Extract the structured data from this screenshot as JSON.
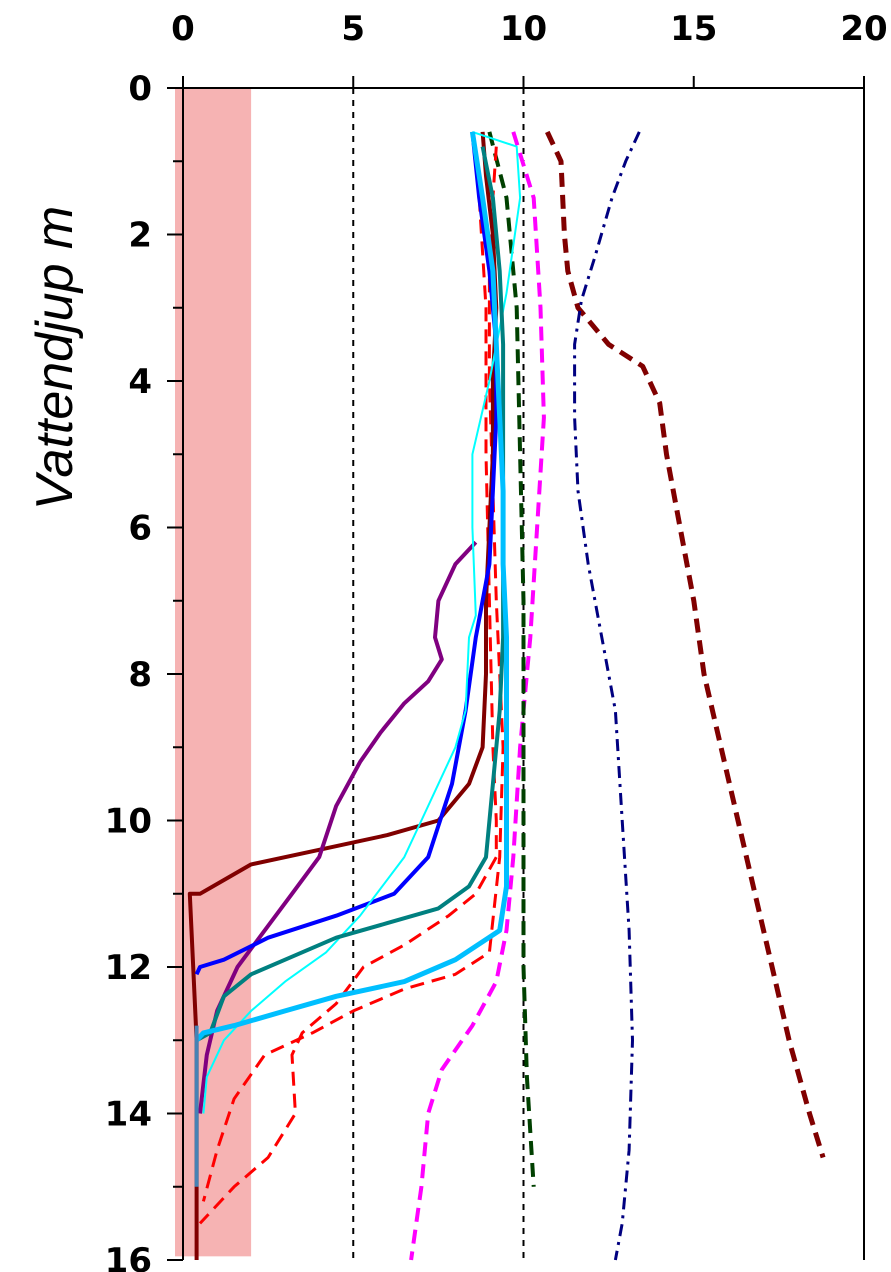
{
  "chart_data": {
    "type": "line",
    "title": "",
    "ylabel": "Vattendjup m",
    "xlabel": "",
    "x_axis_position": "top",
    "y_axis_inverted": true,
    "xlim": [
      0,
      20
    ],
    "ylim": [
      0,
      16
    ],
    "x_ticks": [
      0,
      5,
      10,
      15,
      20
    ],
    "x_tick_labels": [
      "0",
      "5",
      "10",
      "15",
      "20"
    ],
    "y_ticks": [
      0,
      2,
      4,
      6,
      8,
      10,
      12,
      14,
      16
    ],
    "y_tick_labels": [
      "0",
      "2",
      "4",
      "6",
      "8",
      "10",
      "12",
      "14",
      "16"
    ],
    "grid": false,
    "reference_lines_x": [
      5,
      10
    ],
    "shaded_band_x": [
      0,
      2
    ],
    "colors": {
      "band": "#f4a6a6",
      "axis": "#000000"
    },
    "series": [
      {
        "color": "#800000",
        "style": "dashed",
        "width": 5,
        "points": [
          [
            10.7,
            0.6
          ],
          [
            11.1,
            1.0
          ],
          [
            11.2,
            2.0
          ],
          [
            11.3,
            2.5
          ],
          [
            11.6,
            3.0
          ],
          [
            12.5,
            3.5
          ],
          [
            13.5,
            3.8
          ],
          [
            14.0,
            4.3
          ],
          [
            14.2,
            5.0
          ],
          [
            14.6,
            6.0
          ],
          [
            15.0,
            7.0
          ],
          [
            15.3,
            8.0
          ],
          [
            15.8,
            9.0
          ],
          [
            16.3,
            10.0
          ],
          [
            16.8,
            11.0
          ],
          [
            17.3,
            12.0
          ],
          [
            17.8,
            13.0
          ],
          [
            18.4,
            14.0
          ],
          [
            18.8,
            14.6
          ]
        ]
      },
      {
        "color": "#000080",
        "style": "dashdot",
        "width": 3,
        "points": [
          [
            13.4,
            0.6
          ],
          [
            13.0,
            1.0
          ],
          [
            12.6,
            1.5
          ],
          [
            12.1,
            2.3
          ],
          [
            11.7,
            2.9
          ],
          [
            11.5,
            3.5
          ],
          [
            11.5,
            4.5
          ],
          [
            11.6,
            5.5
          ],
          [
            11.9,
            6.5
          ],
          [
            12.3,
            7.5
          ],
          [
            12.7,
            8.5
          ],
          [
            12.9,
            10.0
          ],
          [
            13.1,
            11.5
          ],
          [
            13.2,
            13.0
          ],
          [
            13.1,
            14.5
          ],
          [
            12.9,
            15.5
          ],
          [
            12.7,
            16.0
          ]
        ]
      },
      {
        "color": "#ff00ff",
        "style": "dashed",
        "width": 4,
        "points": [
          [
            9.7,
            0.6
          ],
          [
            10.3,
            1.5
          ],
          [
            10.5,
            3.0
          ],
          [
            10.6,
            4.5
          ],
          [
            10.4,
            6.0
          ],
          [
            10.2,
            7.5
          ],
          [
            9.9,
            9.0
          ],
          [
            9.7,
            10.5
          ],
          [
            9.5,
            11.5
          ],
          [
            9.2,
            12.2
          ],
          [
            8.5,
            12.8
          ],
          [
            7.6,
            13.4
          ],
          [
            7.2,
            14.0
          ],
          [
            7.0,
            15.0
          ],
          [
            6.7,
            16.0
          ]
        ]
      },
      {
        "color": "#004000",
        "style": "dashed",
        "width": 4,
        "points": [
          [
            9.0,
            0.6
          ],
          [
            9.5,
            1.5
          ],
          [
            9.8,
            3.0
          ],
          [
            9.9,
            5.0
          ],
          [
            10.0,
            7.0
          ],
          [
            10.0,
            9.0
          ],
          [
            10.0,
            10.5
          ],
          [
            10.0,
            12.0
          ],
          [
            10.1,
            13.5
          ],
          [
            10.3,
            15.0
          ]
        ]
      },
      {
        "color": "#ff0000",
        "style": "dashed",
        "width": 3,
        "points": [
          [
            8.5,
            0.6
          ],
          [
            8.7,
            1.5
          ],
          [
            8.9,
            3.0
          ],
          [
            8.9,
            5.0
          ],
          [
            9.0,
            7.0
          ],
          [
            9.1,
            9.0
          ],
          [
            9.2,
            10.0
          ],
          [
            9.2,
            10.5
          ],
          [
            8.6,
            11.0
          ],
          [
            7.8,
            11.3
          ],
          [
            6.5,
            11.7
          ],
          [
            5.3,
            12.0
          ],
          [
            4.5,
            12.5
          ],
          [
            3.5,
            12.9
          ],
          [
            3.2,
            13.2
          ],
          [
            3.3,
            14.0
          ],
          [
            2.5,
            14.6
          ],
          [
            1.5,
            15.0
          ],
          [
            0.5,
            15.5
          ]
        ]
      },
      {
        "color": "#ff0000",
        "style": "dashed",
        "width": 3,
        "points": [
          [
            9.2,
            0.8
          ],
          [
            9.1,
            1.5
          ],
          [
            9.0,
            2.5
          ],
          [
            9.0,
            4.0
          ],
          [
            9.1,
            5.5
          ],
          [
            9.2,
            7.0
          ],
          [
            9.4,
            9.0
          ],
          [
            9.3,
            10.5
          ],
          [
            9.0,
            11.8
          ],
          [
            8.0,
            12.1
          ],
          [
            6.5,
            12.3
          ],
          [
            5.0,
            12.6
          ],
          [
            3.8,
            12.9
          ],
          [
            2.4,
            13.2
          ],
          [
            1.5,
            13.8
          ],
          [
            1.0,
            14.5
          ],
          [
            0.6,
            15.2
          ]
        ]
      },
      {
        "color": "#800000",
        "style": "solid",
        "width": 4,
        "points": [
          [
            8.8,
            0.6
          ],
          [
            8.9,
            1.2
          ],
          [
            9.1,
            2.0
          ],
          [
            9.2,
            3.0
          ],
          [
            9.1,
            4.0
          ],
          [
            9.1,
            5.0
          ],
          [
            9.0,
            6.0
          ],
          [
            8.9,
            7.0
          ],
          [
            8.9,
            8.0
          ],
          [
            8.8,
            9.0
          ],
          [
            8.4,
            9.5
          ],
          [
            7.5,
            10.0
          ],
          [
            6.0,
            10.2
          ],
          [
            4.0,
            10.4
          ],
          [
            2.0,
            10.6
          ],
          [
            0.5,
            11.0
          ],
          [
            0.2,
            11.0
          ],
          [
            0.3,
            12.0
          ],
          [
            0.4,
            13.0
          ],
          [
            0.4,
            14.0
          ],
          [
            0.4,
            15.0
          ],
          [
            0.4,
            16.0
          ]
        ]
      },
      {
        "color": "#800080",
        "style": "solid",
        "width": 4,
        "points": [
          [
            8.6,
            6.2
          ],
          [
            8.0,
            6.5
          ],
          [
            7.5,
            7.0
          ],
          [
            7.4,
            7.5
          ],
          [
            7.6,
            7.8
          ],
          [
            7.2,
            8.1
          ],
          [
            6.5,
            8.4
          ],
          [
            5.8,
            8.8
          ],
          [
            5.2,
            9.2
          ],
          [
            4.5,
            9.8
          ],
          [
            4.0,
            10.5
          ],
          [
            3.2,
            11.0
          ],
          [
            2.4,
            11.5
          ],
          [
            1.6,
            12.0
          ],
          [
            1.0,
            12.6
          ],
          [
            0.7,
            13.2
          ],
          [
            0.5,
            14.0
          ]
        ]
      },
      {
        "color": "#0000ff",
        "style": "solid",
        "width": 4,
        "points": [
          [
            8.5,
            0.6
          ],
          [
            8.7,
            1.5
          ],
          [
            9.0,
            2.5
          ],
          [
            9.2,
            3.5
          ],
          [
            9.2,
            4.5
          ],
          [
            9.1,
            5.5
          ],
          [
            9.0,
            6.5
          ],
          [
            8.6,
            7.5
          ],
          [
            8.3,
            8.5
          ],
          [
            7.9,
            9.5
          ],
          [
            7.2,
            10.5
          ],
          [
            6.2,
            11.0
          ],
          [
            4.5,
            11.3
          ],
          [
            2.5,
            11.6
          ],
          [
            1.2,
            11.9
          ],
          [
            0.5,
            12.0
          ],
          [
            0.4,
            12.1
          ]
        ]
      },
      {
        "color": "#00ffff",
        "style": "solid",
        "width": 2,
        "points": [
          [
            8.5,
            0.6
          ],
          [
            9.8,
            0.8
          ],
          [
            9.9,
            1.5
          ],
          [
            9.5,
            2.8
          ],
          [
            9.0,
            4.0
          ],
          [
            8.5,
            5.0
          ],
          [
            8.5,
            6.0
          ],
          [
            8.6,
            7.2
          ],
          [
            8.4,
            7.5
          ],
          [
            8.3,
            8.5
          ],
          [
            8.0,
            9.0
          ],
          [
            7.5,
            9.5
          ],
          [
            7.0,
            10.0
          ],
          [
            6.5,
            10.5
          ],
          [
            5.2,
            11.3
          ],
          [
            4.2,
            11.8
          ],
          [
            3.0,
            12.2
          ],
          [
            2.0,
            12.6
          ],
          [
            1.2,
            13.0
          ],
          [
            0.7,
            13.5
          ],
          [
            0.6,
            14.0
          ]
        ]
      },
      {
        "color": "#008080",
        "style": "solid",
        "width": 4,
        "points": [
          [
            8.8,
            0.8
          ],
          [
            9.1,
            1.5
          ],
          [
            9.3,
            2.5
          ],
          [
            9.4,
            3.5
          ],
          [
            9.4,
            4.5
          ],
          [
            9.4,
            5.5
          ],
          [
            9.4,
            6.5
          ],
          [
            9.4,
            7.5
          ],
          [
            9.3,
            8.5
          ],
          [
            9.1,
            9.5
          ],
          [
            8.9,
            10.5
          ],
          [
            8.4,
            10.9
          ],
          [
            7.5,
            11.2
          ],
          [
            6.0,
            11.4
          ],
          [
            4.5,
            11.6
          ],
          [
            3.0,
            11.9
          ],
          [
            2.0,
            12.1
          ],
          [
            1.2,
            12.4
          ],
          [
            0.8,
            12.9
          ],
          [
            0.4,
            13.0
          ]
        ]
      },
      {
        "color": "#00bfff",
        "style": "solid",
        "width": 5,
        "points": [
          [
            8.5,
            0.6
          ],
          [
            8.8,
            1.5
          ],
          [
            9.1,
            2.5
          ],
          [
            9.2,
            3.5
          ],
          [
            9.3,
            4.5
          ],
          [
            9.4,
            5.5
          ],
          [
            9.4,
            6.5
          ],
          [
            9.5,
            7.5
          ],
          [
            9.5,
            8.5
          ],
          [
            9.5,
            9.5
          ],
          [
            9.5,
            10.5
          ],
          [
            9.5,
            10.9
          ],
          [
            9.3,
            11.5
          ],
          [
            8.0,
            11.9
          ],
          [
            6.5,
            12.2
          ],
          [
            4.5,
            12.4
          ],
          [
            3.0,
            12.6
          ],
          [
            1.5,
            12.8
          ],
          [
            0.6,
            12.9
          ],
          [
            0.4,
            13.0
          ]
        ]
      },
      {
        "color": "#4682b4",
        "style": "solid",
        "width": 4,
        "points": [
          [
            0.4,
            12.8
          ],
          [
            0.4,
            13.5
          ],
          [
            0.4,
            14.5
          ],
          [
            0.4,
            15.0
          ]
        ]
      }
    ]
  }
}
